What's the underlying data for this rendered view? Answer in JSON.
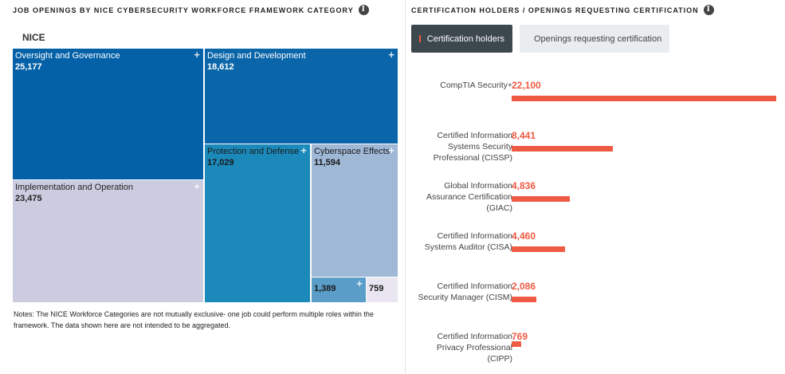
{
  "left_panel": {
    "title": "JOB OPENINGS BY NICE CYBERSECURITY WORKFORCE FRAMEWORK CATEGORY",
    "info_icon": "i",
    "root_label": "NICE",
    "plus": "+",
    "notes": "Notes: The NICE Workforce Categories are not mutually exclusive- one job could perform multiple roles within the framework. The data shown here are not intended to be aggregated."
  },
  "right_panel": {
    "title": "CERTIFICATION HOLDERS / OPENINGS REQUESTING CERTIFICATION",
    "info_icon": "i",
    "legend": [
      {
        "label": "Certification holders",
        "color": "#ee5a43",
        "active": true
      },
      {
        "label": "Openings requesting certification",
        "color": "#5b9bc4",
        "active": false
      }
    ]
  },
  "chart_data": [
    {
      "type": "treemap",
      "title": "JOB OPENINGS BY NICE CYBERSECURITY WORKFORCE FRAMEWORK CATEGORY",
      "root": "NICE",
      "items": [
        {
          "name": "Oversight and Governance",
          "value": 25177,
          "display_value": "25,177",
          "color": "#0461a8"
        },
        {
          "name": "Implementation and Operation",
          "value": 23475,
          "display_value": "23,475",
          "color": "#cbcce0"
        },
        {
          "name": "Design and Development",
          "value": 18612,
          "display_value": "18,612",
          "color": "#0b66a9"
        },
        {
          "name": "Protection and Defense",
          "value": 17029,
          "display_value": "17,029",
          "color": "#1c89bb"
        },
        {
          "name": "Cyberspace Effects",
          "value": 11594,
          "display_value": "11,594",
          "color": "#9eb8d6"
        },
        {
          "name": "",
          "value": 1389,
          "display_value": "1,389",
          "color": "#5a9dc8"
        },
        {
          "name": "",
          "value": 759,
          "display_value": "759",
          "color": "#e9e6f1"
        }
      ]
    },
    {
      "type": "bar",
      "orientation": "horizontal",
      "title": "CERTIFICATION HOLDERS / OPENINGS REQUESTING CERTIFICATION",
      "active_series": "Certification holders",
      "categories": [
        "CompTIA Security+",
        "Certified Information Systems Security Professional (CISSP)",
        "Global Information Assurance Certification (GIAC)",
        "Certified Information Systems Auditor (CISA)",
        "Certified Information Security Manager (CISM)",
        "Certified Information Privacy Professional (CIPP)"
      ],
      "series": [
        {
          "name": "Certification holders",
          "values": [
            22100,
            8441,
            4836,
            4460,
            2086,
            769
          ]
        }
      ],
      "value_labels": [
        "22,100",
        "8,441",
        "4,836",
        "4,460",
        "2,086",
        "769"
      ],
      "xlim": [
        0,
        22100
      ]
    }
  ]
}
